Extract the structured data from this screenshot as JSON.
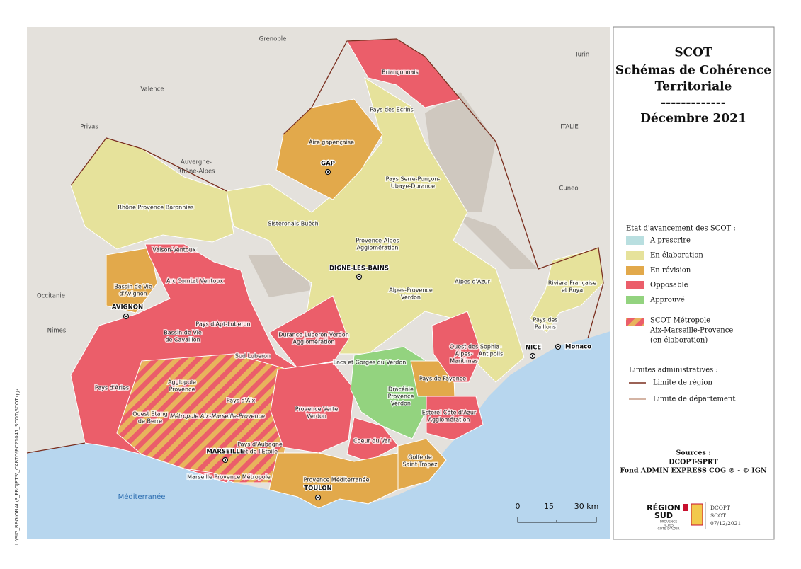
{
  "title": {
    "line1": "SCOT",
    "line2": "Schémas de Cohérence",
    "line3": "Territoriale",
    "separator": "-------------",
    "date": "Décembre 2021"
  },
  "legend": {
    "title": "Etat d'avancement des SCOT :",
    "items": [
      {
        "label": "A prescrire",
        "color": "#b9dfe0"
      },
      {
        "label": "En élaboration",
        "color": "#e6e29b"
      },
      {
        "label": "En révision",
        "color": "#e2a94b"
      },
      {
        "label": "Opposable",
        "color": "#eb5e6a"
      },
      {
        "label": "Approuvé",
        "color": "#93d37f"
      }
    ],
    "hatch": {
      "lines": [
        "SCOT Métropole",
        "Aix-Marseille-Provence",
        "(en élaboration)"
      ],
      "color": "#e8b35c"
    },
    "admin": {
      "title": "Limites administratives :",
      "items": [
        {
          "label": "Limite de région",
          "color": "#7a2e1e"
        },
        {
          "label": "Limite de département",
          "color": "#a86a4a"
        }
      ]
    }
  },
  "sources": {
    "title": "Sources :",
    "lines": [
      "DCOPT-SPRT",
      "Fond ADMIN EXPRESS COG ® - © IGN"
    ]
  },
  "scale": {
    "labels": [
      "0",
      "15",
      "30 km"
    ]
  },
  "logo": {
    "name": [
      "RÉGION",
      "SUD"
    ],
    "sub": [
      "PROVENCE",
      "ALPES",
      "CÔTE D'AZUR"
    ],
    "right": [
      "DCOPT",
      "SCOT",
      "07/12/2021"
    ]
  },
  "side_text": "L:\\SIG_REGIONAL\\P_PROJETS\\_CARTO\\PC21041_SCOT\\SCOT.qgz",
  "map": {
    "scots": [
      [
        "Briançonnais"
      ],
      [
        "Pays des Ecrins"
      ],
      [
        "Aire gapençaise"
      ],
      [
        "Pays Serre-Ponçon-",
        "Ubaye-Durance"
      ],
      [
        "Rhône Provence Baronnies"
      ],
      [
        "Sisteronais-Buëch"
      ],
      [
        "Provence-Alpes",
        "Agglomération"
      ],
      [
        "Vaison-Ventoux"
      ],
      [
        "Arc Comtat Ventoux"
      ],
      [
        "Bassin de Vie",
        "d'Avignon"
      ],
      [
        "Alpes d'Azur"
      ],
      [
        "Riviera Française",
        "et Roya"
      ],
      [
        "Alpes-Provence",
        "Verdon"
      ],
      [
        "Pays d'Apt-Luberon"
      ],
      [
        "Bassin de Vie",
        "de Cavaillon"
      ],
      [
        "Durance-Luberon-Verdon",
        "Agglomération"
      ],
      [
        "Pays des",
        "Paillons"
      ],
      [
        "Sophia-",
        "Antipolis"
      ],
      [
        "Ouest des",
        "Alpes-",
        "Maritimes"
      ],
      [
        "Sud Luberon"
      ],
      [
        "Lacs et Gorges du Verdon"
      ],
      [
        "Pays d'Arles"
      ],
      [
        "Agglopole",
        "Provence"
      ],
      [
        "Pays de Fayence"
      ],
      [
        "Pays d'Aix"
      ],
      [
        "Dracénie",
        "Provence",
        "Verdon"
      ],
      [
        "Provence Verte",
        "Verdon"
      ],
      [
        "Ouest Etang",
        "de Berre"
      ],
      [
        "Esterel Côte d'Azur",
        "Agglomération"
      ],
      [
        "Métropole Aix-Marseille-Provence"
      ],
      [
        "Pays d'Aubagne",
        "et de l'Etoile"
      ],
      [
        "Coeur du Var"
      ],
      [
        "Golfe de",
        "Saint Tropez"
      ],
      [
        "Marseille Provence Métropole"
      ],
      [
        "Provence Méditerranée"
      ]
    ],
    "cities": [
      "GAP",
      "DIGNE-LES-BAINS",
      "AVIGNON",
      "MARSEILLE",
      "TOULON",
      "NICE",
      "Monaco"
    ],
    "places": [
      "Grenoble",
      "Valence",
      "Privas",
      "Turin",
      "ITALIE",
      "Cuneo",
      "Auvergne-",
      "Rhône-Alpes",
      "Occitanie",
      "Nîmes"
    ],
    "sea": "Méditerranée"
  }
}
